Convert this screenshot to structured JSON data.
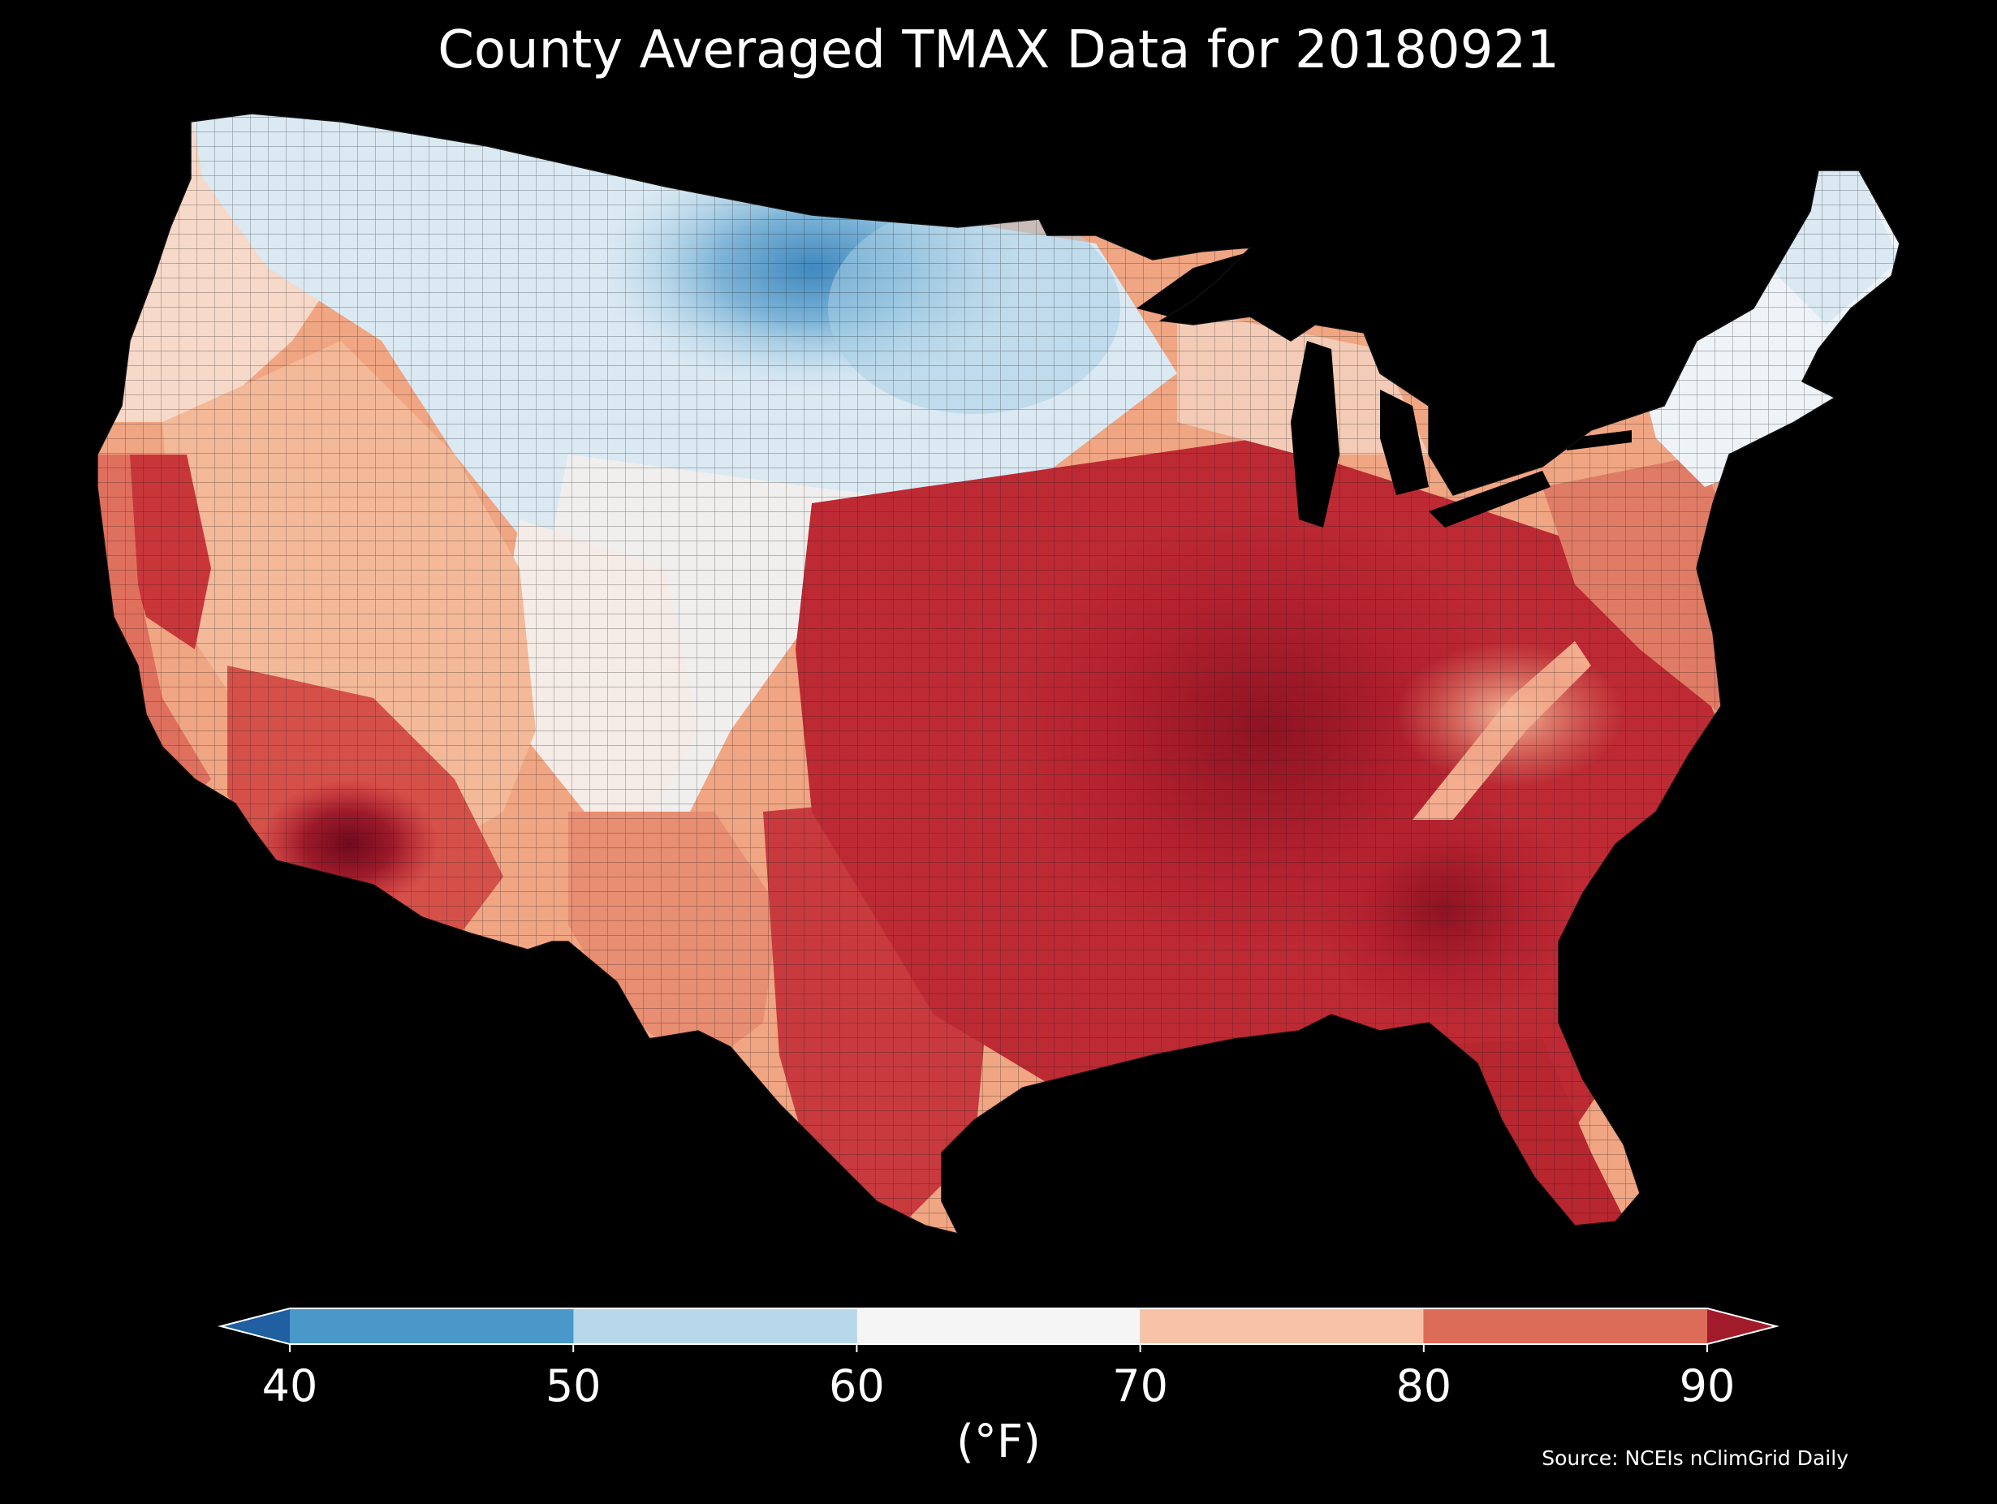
{
  "title": "County Averaged TMAX Data for 20180921",
  "source": "Source: NCEIs nClimGrid Daily",
  "colorbar": {
    "unit_label": "(°F)",
    "ticks": [
      "40",
      "50",
      "60",
      "70",
      "80",
      "90"
    ],
    "tick_values": [
      40,
      50,
      60,
      70,
      80,
      90
    ],
    "extend": "both",
    "bins": [
      {
        "min": null,
        "max": 40,
        "color": "#1f5fa2"
      },
      {
        "min": 40,
        "max": 50,
        "color": "#4a98c9"
      },
      {
        "min": 50,
        "max": 60,
        "color": "#b6d8ea"
      },
      {
        "min": 60,
        "max": 70,
        "color": "#f5f5f5"
      },
      {
        "min": 70,
        "max": 80,
        "color": "#f8c2a7"
      },
      {
        "min": 80,
        "max": 90,
        "color": "#dc6b57"
      },
      {
        "min": 90,
        "max": null,
        "color": "#a11b2b"
      }
    ]
  },
  "colors": {
    "background": "#000000",
    "text": "#ffffff",
    "border": "#1a1a1a"
  },
  "map": {
    "region": "Contiguous United States",
    "variable": "TMAX",
    "date": "20180921",
    "aggregation": "county"
  }
}
